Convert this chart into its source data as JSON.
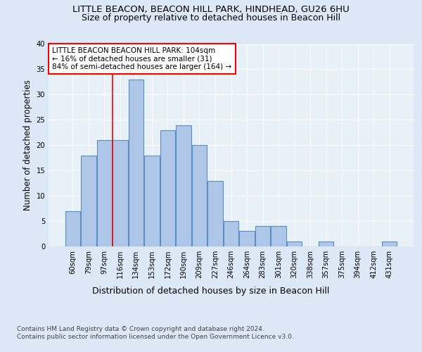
{
  "title1": "LITTLE BEACON, BEACON HILL PARK, HINDHEAD, GU26 6HU",
  "title2": "Size of property relative to detached houses in Beacon Hill",
  "xlabel": "Distribution of detached houses by size in Beacon Hill",
  "ylabel": "Number of detached properties",
  "categories": [
    "60sqm",
    "79sqm",
    "97sqm",
    "116sqm",
    "134sqm",
    "153sqm",
    "172sqm",
    "190sqm",
    "209sqm",
    "227sqm",
    "246sqm",
    "264sqm",
    "283sqm",
    "301sqm",
    "320sqm",
    "338sqm",
    "357sqm",
    "375sqm",
    "394sqm",
    "412sqm",
    "431sqm"
  ],
  "values": [
    7,
    18,
    21,
    21,
    33,
    18,
    23,
    24,
    20,
    13,
    5,
    3,
    4,
    4,
    1,
    0,
    1,
    0,
    0,
    0,
    1
  ],
  "bar_color": "#aec6e8",
  "bar_edge_color": "#5a8fc2",
  "vline_x_index": 2.5,
  "vline_color": "red",
  "annotation_text": "LITTLE BEACON BEACON HILL PARK: 104sqm\n← 16% of detached houses are smaller (31)\n84% of semi-detached houses are larger (164) →",
  "annotation_box_color": "white",
  "annotation_box_edge": "red",
  "ylim": [
    0,
    40
  ],
  "yticks": [
    0,
    5,
    10,
    15,
    20,
    25,
    30,
    35,
    40
  ],
  "footer1": "Contains HM Land Registry data © Crown copyright and database right 2024.",
  "footer2": "Contains public sector information licensed under the Open Government Licence v3.0.",
  "background_color": "#dce8f5",
  "plot_bg_color": "#e8f0f8"
}
